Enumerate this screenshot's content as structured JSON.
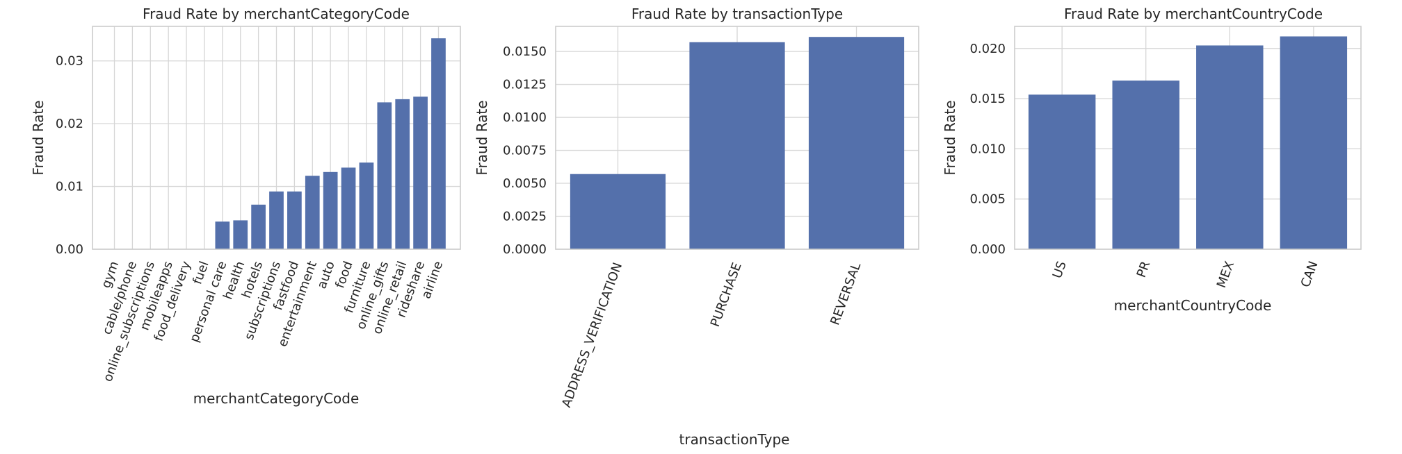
{
  "chart_data": [
    {
      "type": "bar",
      "title": "Fraud Rate by merchantCategoryCode",
      "xlabel": "merchantCategoryCode",
      "ylabel": "Fraud Rate",
      "ylim": [
        0,
        0.0355
      ],
      "yticks": [
        "0.00",
        "0.01",
        "0.02",
        "0.03"
      ],
      "grid": true,
      "categories": [
        "gym",
        "cable/phone",
        "online_subscriptions",
        "mobileapps",
        "food_delivery",
        "fuel",
        "personal care",
        "health",
        "hotels",
        "subscriptions",
        "fastfood",
        "entertainment",
        "auto",
        "food",
        "furniture",
        "online_gifts",
        "online_retail",
        "rideshare",
        "airline"
      ],
      "values": [
        0.0,
        0.0,
        0.0,
        0.0,
        0.0,
        0.0,
        0.0044,
        0.0046,
        0.0071,
        0.0092,
        0.0092,
        0.0117,
        0.0123,
        0.013,
        0.0138,
        0.0234,
        0.0239,
        0.0243,
        0.0336
      ]
    },
    {
      "type": "bar",
      "title": "Fraud Rate by transactionType",
      "xlabel": "transactionType",
      "ylabel": "Fraud Rate",
      "ylim": [
        0,
        0.0169
      ],
      "yticks": [
        "0.0000",
        "0.0025",
        "0.0050",
        "0.0075",
        "0.0100",
        "0.0125",
        "0.0150"
      ],
      "grid": true,
      "categories": [
        "ADDRESS_VERIFICATION",
        "PURCHASE",
        "REVERSAL"
      ],
      "values": [
        0.0057,
        0.0157,
        0.0161
      ]
    },
    {
      "type": "bar",
      "title": "Fraud Rate by merchantCountryCode",
      "xlabel": "merchantCountryCode",
      "ylabel": "Fraud Rate",
      "ylim": [
        0,
        0.0222
      ],
      "yticks": [
        "0.000",
        "0.005",
        "0.010",
        "0.015",
        "0.020"
      ],
      "grid": true,
      "categories": [
        "US",
        "PR",
        "MEX",
        "CAN"
      ],
      "values": [
        0.0154,
        0.0168,
        0.0203,
        0.0212
      ]
    }
  ]
}
